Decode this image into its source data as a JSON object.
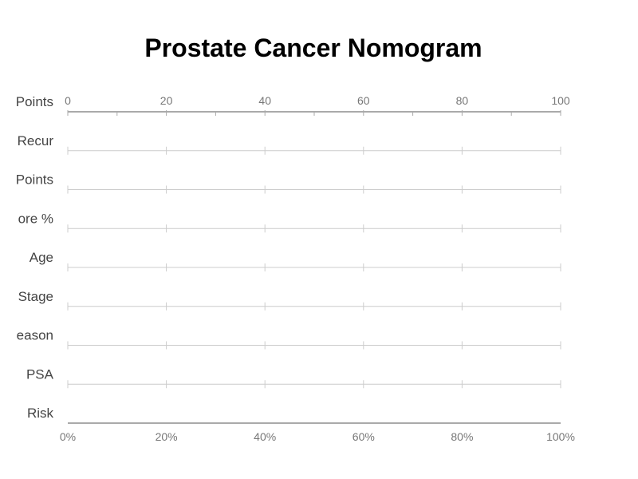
{
  "chart_data": {
    "type": "nomogram",
    "title": "Prostate Cancer Nomogram",
    "rows": [
      "Points",
      "Recur",
      "Points",
      "ore %",
      "Age",
      "Stage",
      "eason",
      "PSA",
      "Risk"
    ],
    "top_axis": {
      "ticks": [
        "0",
        "20",
        "40",
        "60",
        "80",
        "100"
      ],
      "range": [
        0,
        100
      ],
      "minor_step": 10
    },
    "bottom_axis": {
      "ticks": [
        "0%",
        "20%",
        "40%",
        "60%",
        "80%",
        "100%"
      ],
      "range": [
        0,
        100
      ]
    },
    "grid": true,
    "colors": {
      "axis": "#aaaaaa",
      "row_line": "#cccccc",
      "title": "#000000",
      "label": "#444444",
      "tick": "#777777"
    }
  }
}
